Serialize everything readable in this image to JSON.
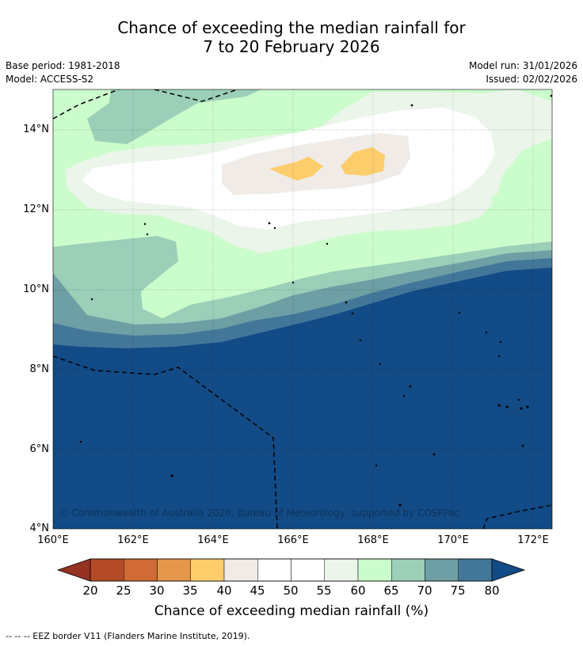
{
  "title": {
    "line1": "Chance of exceeding the median rainfall for",
    "line2": "7 to 20 February 2026"
  },
  "meta": {
    "base_period": "Base period: 1981-2018",
    "model": "Model: ACCESS-S2",
    "model_run": "Model run: 31/01/2026",
    "issued": "Issued: 02/02/2026"
  },
  "map": {
    "lat_labels": [
      "14°N",
      "12°N",
      "10°N",
      "8°N",
      "6°N",
      "4°N"
    ],
    "lon_labels": [
      "160°E",
      "162°E",
      "164°E",
      "166°E",
      "168°E",
      "170°E",
      "172°E"
    ],
    "copyright": "© Commonwealth of Australia 2026, Bureau of Meteorology, supported by COSPPac"
  },
  "colorbar": {
    "labels": [
      "20",
      "25",
      "30",
      "35",
      "40",
      "45",
      "50",
      "55",
      "60",
      "65",
      "70",
      "75",
      "80"
    ],
    "colors": [
      "#b24b26",
      "#d06a36",
      "#e59749",
      "#fdcd6b",
      "#f0ebe6",
      "#ffffff",
      "#ffffff",
      "#ebf5ea",
      "#cbfccb",
      "#9bcfb8",
      "#6d9fa5",
      "#42779a"
    ],
    "under_color": "#963220",
    "over_color": "#124b86",
    "title": "Chance of exceeding median rainfall (%)"
  },
  "footnote": "--  --  -- EEZ border V11 (Flanders Marine Institute, 2019)."
}
